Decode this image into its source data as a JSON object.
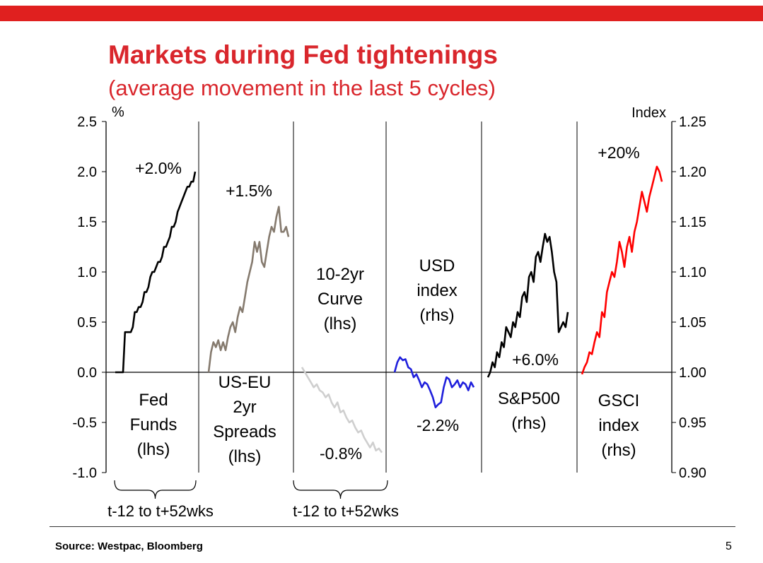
{
  "slide": {
    "title": "Markets during Fed tightenings",
    "subtitle": "(average movement in the last 5 cycles)",
    "source": "Source: Westpac, Bloomberg",
    "page_number": "5"
  },
  "colors": {
    "accent": "#d9262c",
    "bar": "#e0201f",
    "fed": "#000000",
    "spread": "#857a6e",
    "curve": "#cfcfcf",
    "usd": "#1f1fdc",
    "sp": "#000000",
    "gsci": "#ff0000"
  },
  "chart_data": {
    "type": "line",
    "y_left": {
      "label": "%",
      "range": [
        -1.0,
        2.5
      ],
      "ticks": [
        "2.5",
        "2.0",
        "1.5",
        "1.0",
        "0.5",
        "0.0",
        "-0.5",
        "-1.0"
      ]
    },
    "y_right": {
      "label": "Index",
      "range": [
        0.9,
        1.25
      ],
      "ticks": [
        "1.25",
        "1.20",
        "1.15",
        "1.10",
        "1.05",
        "1.00",
        "0.95",
        "0.90"
      ]
    },
    "x_period_labels": [
      "t-12 to t+52wks",
      "t-12 to t+52wks"
    ],
    "series": [
      {
        "key": "fed",
        "name": "Fed Funds (lhs)",
        "axis": "left",
        "label_lines": [
          "Fed",
          "Funds",
          "(lhs)"
        ],
        "change": "+2.0%",
        "values": [
          0,
          0,
          0,
          0,
          0,
          0.4,
          0.4,
          0.4,
          0.4,
          0.45,
          0.6,
          0.6,
          0.65,
          0.65,
          0.7,
          0.8,
          0.8,
          0.85,
          0.95,
          1.0,
          1.0,
          1.05,
          1.1,
          1.1,
          1.15,
          1.25,
          1.25,
          1.3,
          1.35,
          1.45,
          1.45,
          1.5,
          1.6,
          1.65,
          1.7,
          1.75,
          1.8,
          1.85,
          1.85,
          1.9,
          1.9,
          2.0
        ]
      },
      {
        "key": "spread",
        "name": "US-EU 2yr Spreads (lhs)",
        "axis": "left",
        "label_lines": [
          "US-EU",
          "2yr",
          "Spreads",
          "(lhs)"
        ],
        "change": "+1.5%",
        "values": [
          0.0,
          0.2,
          0.3,
          0.25,
          0.32,
          0.22,
          0.3,
          0.22,
          0.35,
          0.45,
          0.5,
          0.4,
          0.55,
          0.65,
          0.6,
          0.75,
          0.9,
          1.0,
          1.1,
          1.3,
          1.2,
          1.3,
          1.1,
          1.05,
          1.2,
          1.35,
          1.45,
          1.4,
          1.55,
          1.65,
          1.4,
          1.4,
          1.45,
          1.35
        ]
      },
      {
        "key": "curve",
        "name": "10-2yr Curve (lhs)",
        "axis": "left",
        "label_lines": [
          "10-2yr",
          "Curve",
          "(lhs)"
        ],
        "change": "-0.8%",
        "values": [
          0.05,
          0.0,
          -0.05,
          -0.1,
          -0.15,
          -0.12,
          -0.18,
          -0.2,
          -0.25,
          -0.22,
          -0.3,
          -0.35,
          -0.3,
          -0.4,
          -0.38,
          -0.45,
          -0.5,
          -0.48,
          -0.55,
          -0.6,
          -0.58,
          -0.65,
          -0.7,
          -0.75,
          -0.7,
          -0.78,
          -0.76,
          -0.8
        ]
      },
      {
        "key": "usd",
        "name": "USD index (rhs)",
        "axis": "right",
        "label_lines": [
          "USD",
          "index",
          "(rhs)"
        ],
        "change": "-2.2%",
        "values": [
          1.0,
          1.01,
          1.015,
          1.012,
          1.013,
          1.005,
          1.003,
          0.995,
          0.998,
          0.992,
          0.985,
          0.99,
          0.988,
          0.982,
          0.975,
          0.965,
          0.968,
          0.97,
          0.985,
          0.995,
          0.993,
          0.985,
          0.988,
          0.992,
          0.985,
          0.99,
          0.988,
          0.982,
          0.99,
          0.985
        ]
      },
      {
        "key": "sp",
        "name": "S&P500 (rhs)",
        "axis": "right",
        "label_lines": [
          "S&P500",
          "(rhs)"
        ],
        "change": "+6.0%",
        "values": [
          0.995,
          1.0,
          1.01,
          1.005,
          1.02,
          1.015,
          1.03,
          1.025,
          1.045,
          1.04,
          1.035,
          1.05,
          1.045,
          1.06,
          1.055,
          1.075,
          1.08,
          1.07,
          1.095,
          1.1,
          1.09,
          1.115,
          1.12,
          1.11,
          1.125,
          1.138,
          1.13,
          1.135,
          1.12,
          1.1,
          1.09,
          1.04,
          1.045,
          1.05,
          1.045,
          1.06
        ]
      },
      {
        "key": "gsci",
        "name": "GSCI index (rhs)",
        "axis": "right",
        "label_lines": [
          "GSCI",
          "index",
          "(rhs)"
        ],
        "change": "+20%",
        "values": [
          0.998,
          1.005,
          1.01,
          1.02,
          1.018,
          1.03,
          1.04,
          1.035,
          1.06,
          1.055,
          1.08,
          1.09,
          1.1,
          1.095,
          1.11,
          1.13,
          1.12,
          1.105,
          1.125,
          1.135,
          1.12,
          1.14,
          1.15,
          1.165,
          1.18,
          1.17,
          1.16,
          1.175,
          1.185,
          1.195,
          1.205,
          1.2,
          1.19
        ]
      }
    ]
  }
}
